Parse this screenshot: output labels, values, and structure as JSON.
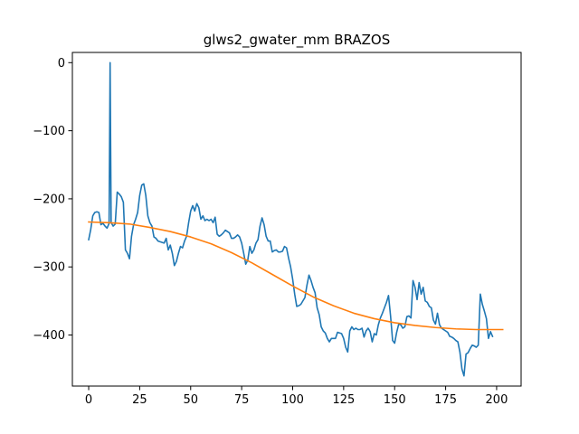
{
  "chart_data": {
    "type": "line",
    "title": "glws2_gwater_mm BRAZOS",
    "xlabel": "",
    "ylabel": "",
    "xlim": [
      -8,
      212
    ],
    "ylim": [
      -475,
      15
    ],
    "x_ticks": [
      0,
      25,
      50,
      75,
      100,
      125,
      150,
      175,
      200
    ],
    "y_ticks": [
      0,
      -100,
      -200,
      -300,
      -400
    ],
    "x_tick_labels": [
      "0",
      "25",
      "50",
      "75",
      "100",
      "125",
      "150",
      "175",
      "200"
    ],
    "y_tick_labels": [
      "0",
      "−100",
      "−200",
      "−300",
      "−400"
    ],
    "grid": false,
    "legend": "none",
    "series": [
      {
        "color": "#1f77b4",
        "points": [
          [
            0,
            -260
          ],
          [
            1,
            -245
          ],
          [
            2,
            -225
          ],
          [
            3,
            -220
          ],
          [
            4,
            -219
          ],
          [
            5,
            -220
          ],
          [
            6,
            -238
          ],
          [
            7,
            -236
          ],
          [
            8,
            -240
          ],
          [
            9,
            -243
          ],
          [
            10,
            -236
          ],
          [
            10.5,
            0
          ],
          [
            11,
            -235
          ],
          [
            12,
            -240
          ],
          [
            13,
            -237
          ],
          [
            14,
            -190
          ],
          [
            15,
            -193
          ],
          [
            16,
            -197
          ],
          [
            17,
            -205
          ],
          [
            18,
            -275
          ],
          [
            19,
            -280
          ],
          [
            20,
            -288
          ],
          [
            21,
            -255
          ],
          [
            22,
            -238
          ],
          [
            23,
            -230
          ],
          [
            24,
            -220
          ],
          [
            25,
            -195
          ],
          [
            26,
            -180
          ],
          [
            27,
            -178
          ],
          [
            28,
            -195
          ],
          [
            29,
            -225
          ],
          [
            30,
            -235
          ],
          [
            31,
            -240
          ],
          [
            32,
            -256
          ],
          [
            33,
            -258
          ],
          [
            34,
            -262
          ],
          [
            35,
            -263
          ],
          [
            36,
            -264
          ],
          [
            37,
            -265
          ],
          [
            38,
            -258
          ],
          [
            39,
            -275
          ],
          [
            40,
            -268
          ],
          [
            41,
            -280
          ],
          [
            42,
            -298
          ],
          [
            43,
            -292
          ],
          [
            44,
            -280
          ],
          [
            45,
            -270
          ],
          [
            46,
            -272
          ],
          [
            47,
            -262
          ],
          [
            48,
            -255
          ],
          [
            49,
            -235
          ],
          [
            50,
            -218
          ],
          [
            51,
            -210
          ],
          [
            52,
            -218
          ],
          [
            53,
            -207
          ],
          [
            54,
            -213
          ],
          [
            55,
            -230
          ],
          [
            56,
            -225
          ],
          [
            57,
            -232
          ],
          [
            58,
            -230
          ],
          [
            59,
            -232
          ],
          [
            60,
            -230
          ],
          [
            61,
            -235
          ],
          [
            62,
            -227
          ],
          [
            63,
            -252
          ],
          [
            64,
            -255
          ],
          [
            65,
            -253
          ],
          [
            66,
            -250
          ],
          [
            67,
            -246
          ],
          [
            68,
            -248
          ],
          [
            69,
            -250
          ],
          [
            70,
            -258
          ],
          [
            71,
            -258
          ],
          [
            72,
            -256
          ],
          [
            73,
            -253
          ],
          [
            74,
            -256
          ],
          [
            75,
            -265
          ],
          [
            76,
            -280
          ],
          [
            77,
            -296
          ],
          [
            78,
            -290
          ],
          [
            79,
            -270
          ],
          [
            80,
            -280
          ],
          [
            81,
            -275
          ],
          [
            82,
            -265
          ],
          [
            83,
            -260
          ],
          [
            84,
            -240
          ],
          [
            85,
            -228
          ],
          [
            86,
            -238
          ],
          [
            87,
            -255
          ],
          [
            88,
            -262
          ],
          [
            89,
            -262
          ],
          [
            90,
            -278
          ],
          [
            91,
            -276
          ],
          [
            92,
            -275
          ],
          [
            93,
            -278
          ],
          [
            94,
            -278
          ],
          [
            95,
            -277
          ],
          [
            96,
            -270
          ],
          [
            97,
            -272
          ],
          [
            98,
            -287
          ],
          [
            99,
            -300
          ],
          [
            100,
            -318
          ],
          [
            101,
            -340
          ],
          [
            102,
            -358
          ],
          [
            103,
            -357
          ],
          [
            104,
            -355
          ],
          [
            105,
            -350
          ],
          [
            106,
            -345
          ],
          [
            107,
            -327
          ],
          [
            108,
            -312
          ],
          [
            109,
            -320
          ],
          [
            110,
            -330
          ],
          [
            111,
            -338
          ],
          [
            112,
            -360
          ],
          [
            113,
            -370
          ],
          [
            114,
            -388
          ],
          [
            115,
            -394
          ],
          [
            116,
            -397
          ],
          [
            117,
            -405
          ],
          [
            118,
            -410
          ],
          [
            119,
            -405
          ],
          [
            120,
            -405
          ],
          [
            121,
            -405
          ],
          [
            122,
            -396
          ],
          [
            123,
            -397
          ],
          [
            124,
            -398
          ],
          [
            125,
            -405
          ],
          [
            126,
            -418
          ],
          [
            127,
            -425
          ],
          [
            128,
            -394
          ],
          [
            129,
            -388
          ],
          [
            130,
            -392
          ],
          [
            131,
            -390
          ],
          [
            132,
            -392
          ],
          [
            133,
            -392
          ],
          [
            134,
            -390
          ],
          [
            135,
            -403
          ],
          [
            136,
            -394
          ],
          [
            137,
            -390
          ],
          [
            138,
            -395
          ],
          [
            139,
            -410
          ],
          [
            140,
            -398
          ],
          [
            141,
            -400
          ],
          [
            142,
            -385
          ],
          [
            143,
            -375
          ],
          [
            144,
            -368
          ],
          [
            145,
            -360
          ],
          [
            146,
            -352
          ],
          [
            147,
            -342
          ],
          [
            148,
            -372
          ],
          [
            149,
            -408
          ],
          [
            150,
            -412
          ],
          [
            151,
            -396
          ],
          [
            152,
            -384
          ],
          [
            153,
            -385
          ],
          [
            154,
            -390
          ],
          [
            155,
            -388
          ],
          [
            156,
            -373
          ],
          [
            157,
            -372
          ],
          [
            158,
            -375
          ],
          [
            159,
            -320
          ],
          [
            160,
            -330
          ],
          [
            161,
            -348
          ],
          [
            162,
            -323
          ],
          [
            163,
            -340
          ],
          [
            164,
            -330
          ],
          [
            165,
            -350
          ],
          [
            166,
            -352
          ],
          [
            167,
            -358
          ],
          [
            168,
            -360
          ],
          [
            169,
            -378
          ],
          [
            170,
            -384
          ],
          [
            171,
            -368
          ],
          [
            172,
            -385
          ],
          [
            173,
            -390
          ],
          [
            174,
            -392
          ],
          [
            175,
            -394
          ],
          [
            176,
            -396
          ],
          [
            177,
            -402
          ],
          [
            178,
            -403
          ],
          [
            179,
            -405
          ],
          [
            180,
            -408
          ],
          [
            181,
            -410
          ],
          [
            182,
            -425
          ],
          [
            183,
            -450
          ],
          [
            184,
            -460
          ],
          [
            185,
            -428
          ],
          [
            186,
            -426
          ],
          [
            187,
            -420
          ],
          [
            188,
            -415
          ],
          [
            189,
            -416
          ],
          [
            190,
            -418
          ],
          [
            191,
            -415
          ],
          [
            192,
            -340
          ],
          [
            193,
            -355
          ],
          [
            194,
            -365
          ],
          [
            195,
            -376
          ],
          [
            196,
            -405
          ],
          [
            197,
            -395
          ],
          [
            198,
            -402
          ]
        ]
      },
      {
        "color": "#ff7f0e",
        "shape": "sigmoid",
        "points": [
          [
            0,
            -234
          ],
          [
            10,
            -235
          ],
          [
            20,
            -237
          ],
          [
            30,
            -242
          ],
          [
            40,
            -248
          ],
          [
            50,
            -256
          ],
          [
            60,
            -266
          ],
          [
            70,
            -279
          ],
          [
            80,
            -294
          ],
          [
            90,
            -311
          ],
          [
            100,
            -328
          ],
          [
            110,
            -344
          ],
          [
            120,
            -357
          ],
          [
            130,
            -368
          ],
          [
            140,
            -376
          ],
          [
            150,
            -382
          ],
          [
            160,
            -386
          ],
          [
            170,
            -389
          ],
          [
            180,
            -391
          ],
          [
            190,
            -392
          ],
          [
            203,
            -392
          ]
        ]
      }
    ]
  }
}
